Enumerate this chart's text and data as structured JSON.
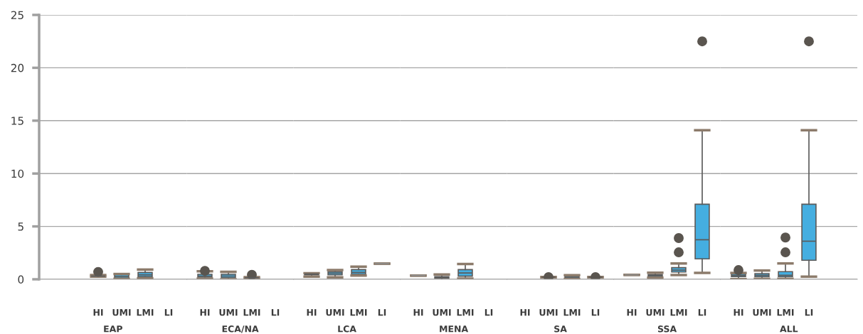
{
  "chart_data": [
    {
      "type": "box",
      "xlabel": "EAP",
      "categories": [
        "HI",
        "UMI",
        "LMI",
        "LI"
      ],
      "ylim": [
        0,
        25
      ],
      "yticks": [
        0,
        5,
        10,
        15,
        20,
        25
      ],
      "grid": "y",
      "color": "#45aee0",
      "boxes": [
        {
          "low": 0.25,
          "q1": 0.3,
          "median": 0.3,
          "q3": 0.35,
          "high": 0.4,
          "outliers": [
            0.7
          ]
        },
        {
          "low": 0.05,
          "q1": 0.1,
          "median": 0.25,
          "q3": 0.45,
          "high": 0.5
        },
        {
          "low": 0.1,
          "q1": 0.25,
          "median": 0.42,
          "q3": 0.65,
          "high": 0.92
        },
        null
      ]
    },
    {
      "type": "box",
      "xlabel": "ECA/NA",
      "categories": [
        "HI",
        "UMI",
        "LMI",
        "LI"
      ],
      "ylim": [
        0,
        25
      ],
      "yticks": [
        0,
        5,
        10,
        15,
        20,
        25
      ],
      "grid": "y",
      "tick_labels": "x",
      "color": "#45aee0",
      "boxes": [
        {
          "low": 0.07,
          "q1": 0.2,
          "median": 0.3,
          "q3": 0.47,
          "high": 0.75,
          "outliers": [
            0.8
          ]
        },
        {
          "low": 0.0,
          "q1": 0.15,
          "median": 0.3,
          "q3": 0.47,
          "high": 0.7
        },
        {
          "low": 0.1,
          "q1": 0.12,
          "median": 0.15,
          "q3": 0.18,
          "high": 0.2,
          "outliers": [
            0.42
          ]
        },
        null
      ]
    },
    {
      "type": "box",
      "xlabel": "LCA",
      "categories": [
        "HI",
        "UMI",
        "LMI",
        "LI"
      ],
      "ylim": [
        0,
        25
      ],
      "yticks": [
        0,
        5,
        10,
        15,
        20,
        25
      ],
      "grid": "y",
      "tick_labels": "x",
      "colors": [
        "#45aee0",
        "#45aee0",
        "#45aee0",
        "#8f8f8f"
      ],
      "boxes": [
        {
          "low": 0.25,
          "q1": 0.42,
          "median": 0.5,
          "q3": 0.58,
          "high": 0.58
        },
        {
          "low": 0.18,
          "q1": 0.42,
          "median": 0.58,
          "q3": 0.72,
          "high": 0.87
        },
        {
          "low": 0.36,
          "q1": 0.47,
          "median": 0.65,
          "q3": 0.92,
          "high": 1.19
        },
        {
          "low": 1.48,
          "q1": 1.48,
          "median": 1.48,
          "q3": 1.48,
          "high": 1.48
        }
      ]
    },
    {
      "type": "box",
      "xlabel": "MENA",
      "categories": [
        "HI",
        "UMI",
        "LMI",
        "LI"
      ],
      "ylim": [
        0,
        25
      ],
      "yticks": [
        0,
        5,
        10,
        15,
        20,
        25
      ],
      "grid": "y",
      "tick_labels": "x",
      "colors": [
        "#8f8f8f",
        "#45aee0",
        "#45aee0",
        "#45aee0"
      ],
      "boxes": [
        {
          "low": 0.36,
          "q1": 0.36,
          "median": 0.36,
          "q3": 0.36,
          "high": 0.36
        },
        {
          "low": -0.1,
          "q1": 0.11,
          "median": 0.18,
          "q3": 0.25,
          "high": 0.45
        },
        {
          "low": 0.07,
          "q1": 0.29,
          "median": 0.6,
          "q3": 0.92,
          "high": 1.45
        },
        null
      ]
    },
    {
      "type": "box",
      "xlabel": "SA",
      "categories": [
        "HI",
        "UMI",
        "LMI",
        "LI"
      ],
      "ylim": [
        0,
        25
      ],
      "yticks": [
        0,
        5,
        10,
        15,
        20,
        25
      ],
      "grid": "y",
      "tick_labels": "x",
      "colors": [
        "#45aee0",
        "#5a554f",
        "#45aee0",
        "#5a554f"
      ],
      "boxes": [
        null,
        {
          "low": 0.2,
          "q1": 0.2,
          "median": 0.2,
          "q3": 0.2,
          "high": 0.2,
          "outliers": [
            0.2
          ]
        },
        {
          "low": 0.05,
          "q1": 0.11,
          "median": 0.2,
          "q3": 0.29,
          "high": 0.38
        },
        {
          "low": 0.2,
          "q1": 0.2,
          "median": 0.2,
          "q3": 0.2,
          "high": 0.2,
          "outliers": [
            0.2
          ]
        }
      ]
    },
    {
      "type": "box",
      "xlabel": "SSA",
      "categories": [
        "HI",
        "UMI",
        "LMI",
        "LI"
      ],
      "ylim": [
        0,
        25
      ],
      "yticks": [
        0,
        5,
        10,
        15,
        20,
        25
      ],
      "grid": "y",
      "tick_labels": "x",
      "colors": [
        "#8f8f8f",
        "#45aee0",
        "#45aee0",
        "#45aee0"
      ],
      "boxes": [
        {
          "low": 0.42,
          "q1": 0.42,
          "median": 0.42,
          "q3": 0.42,
          "high": 0.42
        },
        {
          "low": 0.15,
          "q1": 0.25,
          "median": 0.34,
          "q3": 0.45,
          "high": 0.62
        },
        {
          "low": 0.4,
          "q1": 0.69,
          "median": 0.87,
          "q3": 1.1,
          "high": 1.5,
          "outliers": [
            2.55,
            3.9
          ]
        },
        {
          "low": 0.6,
          "q1": 1.93,
          "median": 3.74,
          "q3": 7.1,
          "high": 14.1,
          "outliers": [
            22.5
          ]
        }
      ]
    },
    {
      "type": "box",
      "xlabel": "ALL",
      "categories": [
        "HI",
        "UMI",
        "LMI",
        "LI"
      ],
      "ylim": [
        0,
        25
      ],
      "yticks": [
        0,
        5,
        10,
        15,
        20,
        25
      ],
      "grid": "y",
      "tick_labels": "x",
      "color": "#45aee0",
      "boxes": [
        {
          "low": 0.02,
          "q1": 0.25,
          "median": 0.35,
          "q3": 0.49,
          "high": 0.6,
          "outliers": [
            0.87
          ]
        },
        {
          "low": 0.05,
          "q1": 0.25,
          "median": 0.38,
          "q3": 0.54,
          "high": 0.83
        },
        {
          "low": 0.05,
          "q1": 0.25,
          "median": 0.38,
          "q3": 0.72,
          "high": 1.5,
          "outliers": [
            2.55,
            3.95
          ]
        },
        {
          "low": 0.25,
          "q1": 1.8,
          "median": 3.6,
          "q3": 7.1,
          "high": 14.1,
          "outliers": [
            22.5
          ]
        }
      ]
    }
  ]
}
